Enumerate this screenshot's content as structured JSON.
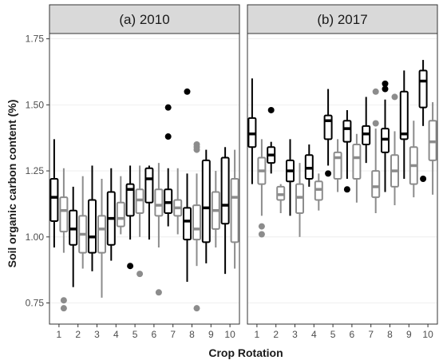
{
  "chart_data": {
    "type": "boxplot",
    "xlabel": "Crop Rotation",
    "ylabel": "Soil organic carbon content (%)",
    "ylim": [
      0.67,
      1.77
    ],
    "yticks": [
      "0.75",
      "1.00",
      "1.25",
      "1.50",
      "1.75"
    ],
    "categories": [
      "1",
      "2",
      "3",
      "4",
      "5",
      "6",
      "7",
      "8",
      "9",
      "10"
    ],
    "colors": {
      "group_a": "#000000",
      "group_b": "#8c8c8c"
    },
    "panels": [
      {
        "title": "(a) 2010",
        "groups": [
          {
            "color_key": "group_a",
            "boxes": [
              {
                "whisker_low": 0.96,
                "q1": 1.06,
                "median": 1.15,
                "q3": 1.22,
                "whisker_high": 1.37,
                "outliers": []
              },
              {
                "whisker_low": 0.81,
                "q1": 0.97,
                "median": 1.03,
                "q3": 1.1,
                "whisker_high": 1.19,
                "outliers": []
              },
              {
                "whisker_low": 0.87,
                "q1": 0.94,
                "median": 1.0,
                "q3": 1.14,
                "whisker_high": 1.27,
                "outliers": []
              },
              {
                "whisker_low": 0.91,
                "q1": 0.97,
                "median": 1.07,
                "q3": 1.17,
                "whisker_high": 1.26,
                "outliers": []
              },
              {
                "whisker_low": 0.99,
                "q1": 1.08,
                "median": 1.18,
                "q3": 1.2,
                "whisker_high": 1.27,
                "outliers": [
                  0.89
                ]
              },
              {
                "whisker_low": 0.99,
                "q1": 1.13,
                "median": 1.22,
                "q3": 1.26,
                "whisker_high": 1.27,
                "outliers": []
              },
              {
                "whisker_low": 1.04,
                "q1": 1.09,
                "median": 1.13,
                "q3": 1.18,
                "whisker_high": 1.26,
                "outliers": [
                  1.38,
                  1.49
                ]
              },
              {
                "whisker_low": 0.83,
                "q1": 0.99,
                "median": 1.06,
                "q3": 1.11,
                "whisker_high": 1.24,
                "outliers": [
                  1.55
                ]
              },
              {
                "whisker_low": 0.9,
                "q1": 0.98,
                "median": 1.11,
                "q3": 1.29,
                "whisker_high": 1.33,
                "outliers": []
              },
              {
                "whisker_low": 0.86,
                "q1": 1.05,
                "median": 1.12,
                "q3": 1.3,
                "whisker_high": 1.34,
                "outliers": []
              }
            ]
          },
          {
            "color_key": "group_b",
            "boxes": [
              {
                "whisker_low": 0.94,
                "q1": 1.02,
                "median": 1.1,
                "q3": 1.15,
                "whisker_high": 1.26,
                "outliers": [
                  0.73,
                  0.76
                ]
              },
              {
                "whisker_low": 0.88,
                "q1": 0.94,
                "median": 1.01,
                "q3": 1.08,
                "whisker_high": 1.23,
                "outliers": []
              },
              {
                "whisker_low": 0.77,
                "q1": 0.94,
                "median": 1.03,
                "q3": 1.08,
                "whisker_high": 1.22,
                "outliers": []
              },
              {
                "whisker_low": 1.01,
                "q1": 1.04,
                "median": 1.07,
                "q3": 1.13,
                "whisker_high": 1.23,
                "outliers": []
              },
              {
                "whisker_low": 1.0,
                "q1": 1.09,
                "median": 1.14,
                "q3": 1.18,
                "whisker_high": 1.27,
                "outliers": [
                  0.86
                ]
              },
              {
                "whisker_low": 0.96,
                "q1": 1.08,
                "median": 1.12,
                "q3": 1.18,
                "whisker_high": 1.28,
                "outliers": [
                  0.79
                ]
              },
              {
                "whisker_low": 1.01,
                "q1": 1.08,
                "median": 1.11,
                "q3": 1.14,
                "whisker_high": 1.26,
                "outliers": []
              },
              {
                "whisker_low": 0.89,
                "q1": 0.99,
                "median": 1.03,
                "q3": 1.12,
                "whisker_high": 1.24,
                "outliers": [
                  0.73,
                  1.33,
                  1.34,
                  1.35
                ]
              },
              {
                "whisker_low": 0.96,
                "q1": 1.03,
                "median": 1.1,
                "q3": 1.17,
                "whisker_high": 1.25,
                "outliers": []
              },
              {
                "whisker_low": 0.88,
                "q1": 0.98,
                "median": 1.15,
                "q3": 1.22,
                "whisker_high": 1.33,
                "outliers": []
              }
            ]
          }
        ]
      },
      {
        "title": "(b) 2017",
        "groups": [
          {
            "color_key": "group_a",
            "boxes": [
              {
                "whisker_low": 1.2,
                "q1": 1.34,
                "median": 1.39,
                "q3": 1.45,
                "whisker_high": 1.6,
                "outliers": []
              },
              {
                "whisker_low": 1.24,
                "q1": 1.28,
                "median": 1.31,
                "q3": 1.34,
                "whisker_high": 1.36,
                "outliers": [
                  1.48
                ]
              },
              {
                "whisker_low": 1.08,
                "q1": 1.21,
                "median": 1.25,
                "q3": 1.29,
                "whisker_high": 1.37,
                "outliers": []
              },
              {
                "whisker_low": 1.19,
                "q1": 1.22,
                "median": 1.26,
                "q3": 1.31,
                "whisker_high": 1.35,
                "outliers": []
              },
              {
                "whisker_low": 1.27,
                "q1": 1.37,
                "median": 1.44,
                "q3": 1.46,
                "whisker_high": 1.56,
                "outliers": [
                  1.24
                ]
              },
              {
                "whisker_low": 1.22,
                "q1": 1.36,
                "median": 1.41,
                "q3": 1.44,
                "whisker_high": 1.48,
                "outliers": [
                  1.18
                ]
              },
              {
                "whisker_low": 1.28,
                "q1": 1.35,
                "median": 1.39,
                "q3": 1.42,
                "whisker_high": 1.53,
                "outliers": []
              },
              {
                "whisker_low": 1.17,
                "q1": 1.32,
                "median": 1.37,
                "q3": 1.41,
                "whisker_high": 1.52,
                "outliers": [
                  1.56,
                  1.58
                ]
              },
              {
                "whisker_low": 1.22,
                "q1": 1.37,
                "median": 1.39,
                "q3": 1.55,
                "whisker_high": 1.63,
                "outliers": []
              },
              {
                "whisker_low": 1.42,
                "q1": 1.49,
                "median": 1.59,
                "q3": 1.63,
                "whisker_high": 1.67,
                "outliers": [
                  1.22
                ]
              }
            ]
          },
          {
            "color_key": "group_b",
            "boxes": [
              {
                "whisker_low": 1.08,
                "q1": 1.2,
                "median": 1.25,
                "q3": 1.3,
                "whisker_high": 1.37,
                "outliers": [
                  1.01,
                  1.04
                ]
              },
              {
                "whisker_low": 1.09,
                "q1": 1.14,
                "median": 1.16,
                "q3": 1.19,
                "whisker_high": 1.2,
                "outliers": []
              },
              {
                "whisker_low": 1.0,
                "q1": 1.09,
                "median": 1.15,
                "q3": 1.2,
                "whisker_high": 1.28,
                "outliers": []
              },
              {
                "whisker_low": 1.1,
                "q1": 1.14,
                "median": 1.18,
                "q3": 1.21,
                "whisker_high": 1.24,
                "outliers": []
              },
              {
                "whisker_low": 1.17,
                "q1": 1.22,
                "median": 1.3,
                "q3": 1.32,
                "whisker_high": 1.37,
                "outliers": []
              },
              {
                "whisker_low": 1.13,
                "q1": 1.22,
                "median": 1.3,
                "q3": 1.35,
                "whisker_high": 1.39,
                "outliers": []
              },
              {
                "whisker_low": 1.09,
                "q1": 1.15,
                "median": 1.19,
                "q3": 1.25,
                "whisker_high": 1.41,
                "outliers": [
                  1.43,
                  1.55
                ]
              },
              {
                "whisker_low": 1.12,
                "q1": 1.19,
                "median": 1.25,
                "q3": 1.31,
                "whisker_high": 1.4,
                "outliers": [
                  1.53
                ]
              },
              {
                "whisker_low": 1.15,
                "q1": 1.2,
                "median": 1.27,
                "q3": 1.34,
                "whisker_high": 1.44,
                "outliers": []
              },
              {
                "whisker_low": 1.16,
                "q1": 1.29,
                "median": 1.36,
                "q3": 1.44,
                "whisker_high": 1.51,
                "outliers": []
              }
            ]
          }
        ]
      }
    ]
  }
}
